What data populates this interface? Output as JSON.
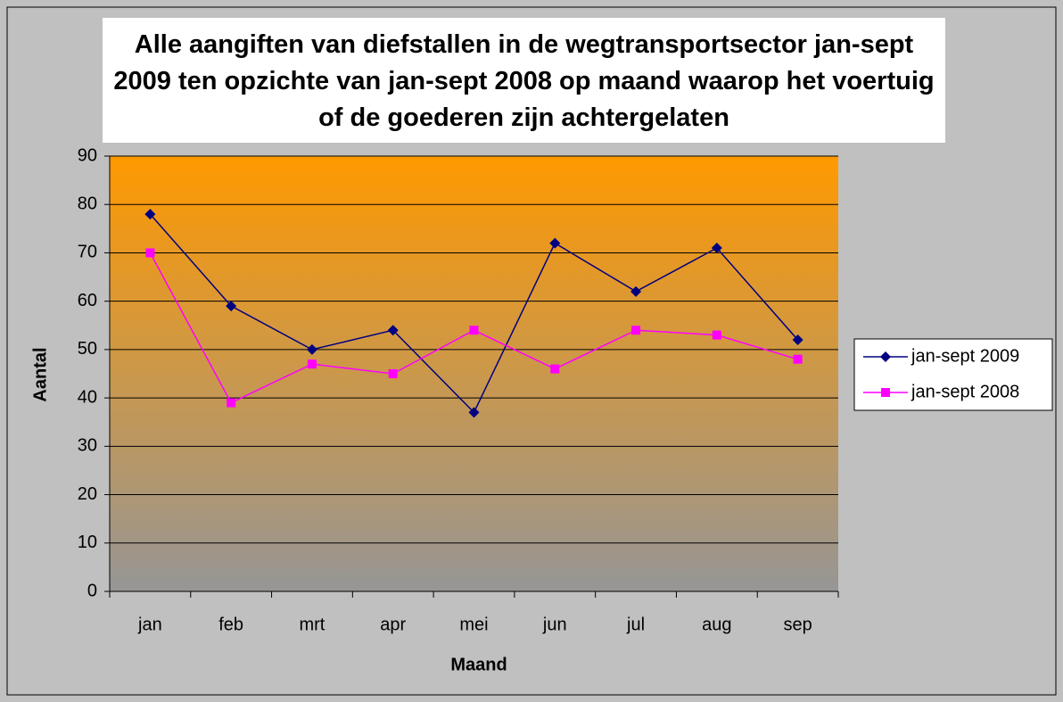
{
  "chart_data": {
    "type": "line",
    "title": "Alle aangiften van diefstallen in de wegtransportsector jan-sept 2009 ten opzichte van jan-sept 2008 op maand waarop het voertuig of de goederen zijn achtergelaten",
    "x_label": "Maand",
    "y_label": "Aantal",
    "categories": [
      "jan",
      "feb",
      "mrt",
      "apr",
      "mei",
      "jun",
      "jul",
      "aug",
      "sep"
    ],
    "series": [
      {
        "name": "jan-sept 2009",
        "color": "#000080",
        "marker": "diamond",
        "values": [
          78,
          59,
          50,
          54,
          37,
          72,
          62,
          71,
          52
        ]
      },
      {
        "name": "jan-sept 2008",
        "color": "#ff00ff",
        "marker": "square",
        "values": [
          70,
          39,
          47,
          45,
          54,
          46,
          54,
          53,
          48
        ]
      }
    ],
    "ylim": [
      0,
      90
    ],
    "yticks": [
      0,
      10,
      20,
      30,
      40,
      50,
      60,
      70,
      80,
      90
    ],
    "grid": true,
    "legend": "right"
  }
}
